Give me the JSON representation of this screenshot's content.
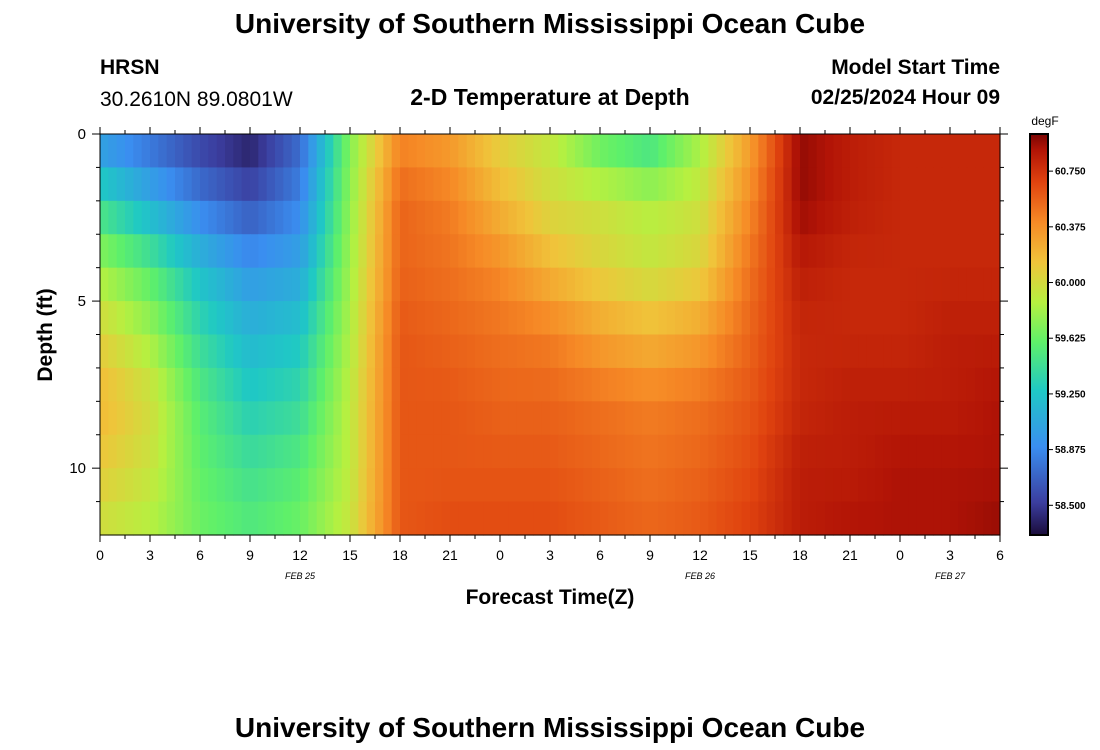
{
  "header": {
    "title": "University of Southern Mississippi Ocean Cube",
    "station": "HRSN",
    "coords": "30.2610N  89.0801W",
    "plot_title": "2-D Temperature at Depth",
    "model_start_label": "Model Start Time",
    "model_start_value": "02/25/2024 Hour 09"
  },
  "footer": {
    "title": "University of Southern Mississippi Ocean Cube"
  },
  "chart_data": {
    "type": "heatmap",
    "title": "2-D Temperature at Depth",
    "xlabel": "Forecast Time(Z)",
    "ylabel": "Depth (ft)",
    "x_tick_labels": [
      "0",
      "3",
      "6",
      "9",
      "12",
      "15",
      "18",
      "21",
      "0",
      "3",
      "6",
      "9",
      "12",
      "15",
      "18",
      "21",
      "0",
      "3",
      "6"
    ],
    "x_date_labels": [
      {
        "label": "FEB 25",
        "hour": 12
      },
      {
        "label": "FEB 26",
        "hour": 36
      },
      {
        "label": "FEB 27",
        "hour": 51
      }
    ],
    "x_range_hours": [
      0,
      54
    ],
    "y_tick_labels": [
      "0",
      "5",
      "10"
    ],
    "y_range_ft": [
      0,
      12
    ],
    "colorbar": {
      "unit": "degF",
      "ticks": [
        "60.750",
        "60.375",
        "60.000",
        "59.625",
        "59.250",
        "58.875",
        "58.500"
      ],
      "range": [
        58.3,
        61.0
      ]
    },
    "hours": [
      0,
      3,
      6,
      9,
      12,
      15,
      18,
      21,
      24,
      27,
      30,
      33,
      36,
      39,
      42,
      45,
      48,
      51,
      54
    ],
    "depths_ft": [
      0,
      2,
      4,
      6,
      8,
      10,
      12
    ],
    "values_degF": [
      [
        58.9,
        58.7,
        58.5,
        58.35,
        58.7,
        59.7,
        60.4,
        60.3,
        60.05,
        59.9,
        59.55,
        59.4,
        59.8,
        60.3,
        60.95,
        60.85,
        60.8,
        60.8,
        60.8
      ],
      [
        59.4,
        59.1,
        58.8,
        58.6,
        58.85,
        59.75,
        60.55,
        60.45,
        60.2,
        60.0,
        59.95,
        59.85,
        59.95,
        60.4,
        60.95,
        60.85,
        60.8,
        60.8,
        60.8
      ],
      [
        59.8,
        59.55,
        59.2,
        58.95,
        59.05,
        59.8,
        60.55,
        60.5,
        60.4,
        60.2,
        60.05,
        59.95,
        60.05,
        60.5,
        60.85,
        60.8,
        60.8,
        60.8,
        60.8
      ],
      [
        60.05,
        59.8,
        59.4,
        59.15,
        59.25,
        59.85,
        60.6,
        60.55,
        60.5,
        60.45,
        60.3,
        60.2,
        60.3,
        60.55,
        60.8,
        60.8,
        60.8,
        60.85,
        60.85
      ],
      [
        60.2,
        60.0,
        59.55,
        59.3,
        59.4,
        59.9,
        60.6,
        60.6,
        60.55,
        60.55,
        60.5,
        60.45,
        60.5,
        60.6,
        60.8,
        60.85,
        60.85,
        60.85,
        60.9
      ],
      [
        60.1,
        59.95,
        59.6,
        59.45,
        59.55,
        59.9,
        60.6,
        60.6,
        60.6,
        60.6,
        60.55,
        60.5,
        60.55,
        60.65,
        60.85,
        60.85,
        60.9,
        60.9,
        60.9
      ],
      [
        59.95,
        59.85,
        59.65,
        59.55,
        59.65,
        59.95,
        60.6,
        60.65,
        60.65,
        60.65,
        60.6,
        60.55,
        60.6,
        60.7,
        60.85,
        60.9,
        60.9,
        60.9,
        60.95
      ]
    ],
    "grid": false,
    "legend": "right colorbar"
  }
}
